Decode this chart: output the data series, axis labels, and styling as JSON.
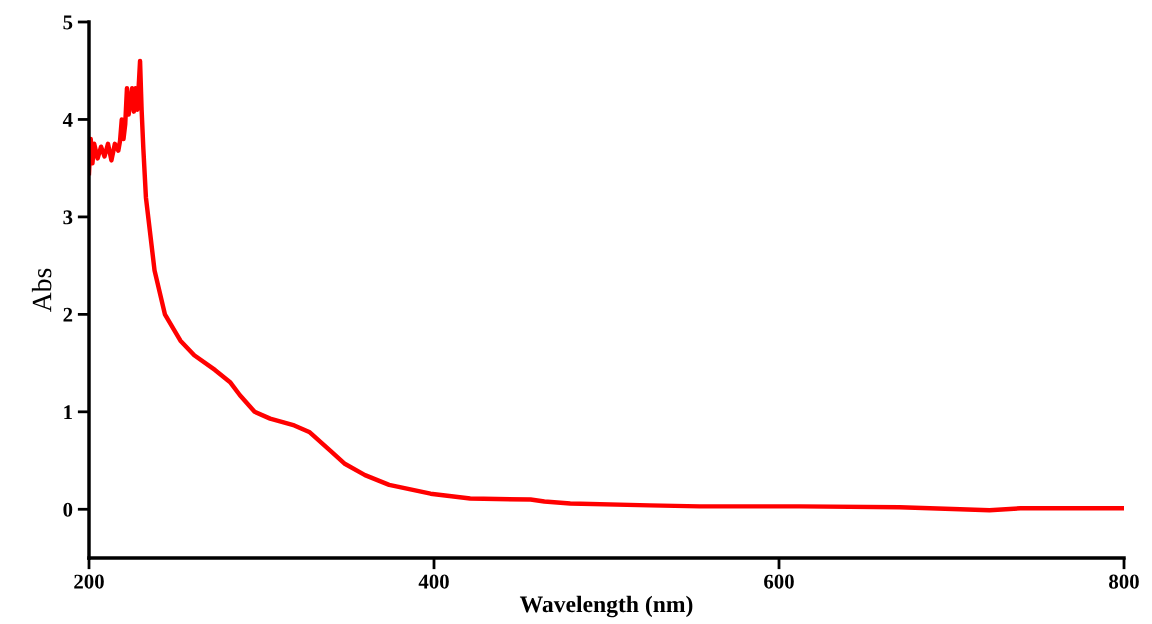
{
  "chart_data": {
    "type": "line",
    "xlabel": "Wavelength (nm)",
    "ylabel": "Abs",
    "xlim": [
      200,
      800
    ],
    "xticks": [
      200,
      400,
      600,
      800
    ],
    "ylim": [
      -0.5,
      5
    ],
    "yticks": [
      0,
      1,
      2,
      3,
      4,
      5
    ],
    "grid": false,
    "series": [
      {
        "color": "#ff0000",
        "x": [
          200,
          201,
          202,
          203,
          205,
          207,
          209,
          211,
          213,
          215,
          217,
          218,
          219,
          220,
          221,
          222,
          223,
          225,
          226,
          227,
          228,
          229,
          229.6,
          230.5,
          231.5,
          233,
          238,
          244,
          253,
          261,
          273,
          282,
          287.5,
          296,
          305,
          319,
          328,
          340,
          348,
          360,
          374,
          398,
          421,
          456,
          464,
          479,
          525,
          554,
          612,
          670,
          705,
          722,
          740,
          800
        ],
        "values": [
          3.45,
          3.8,
          3.55,
          3.75,
          3.6,
          3.72,
          3.62,
          3.75,
          3.58,
          3.75,
          3.68,
          3.78,
          4.0,
          3.8,
          3.95,
          4.32,
          4.05,
          4.32,
          4.08,
          4.32,
          4.1,
          4.4,
          4.6,
          4.1,
          3.7,
          3.2,
          2.45,
          2.0,
          1.73,
          1.58,
          1.43,
          1.3,
          1.17,
          1.0,
          0.93,
          0.86,
          0.79,
          0.6,
          0.47,
          0.35,
          0.25,
          0.16,
          0.11,
          0.1,
          0.08,
          0.06,
          0.04,
          0.03,
          0.03,
          0.02,
          0.0,
          -0.01,
          0.01,
          0.01
        ]
      }
    ]
  }
}
